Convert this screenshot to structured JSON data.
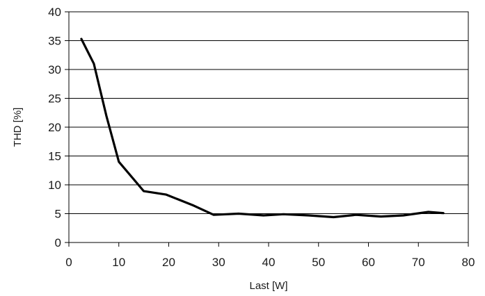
{
  "chart_data": {
    "type": "line",
    "title": "",
    "xlabel": "Last [W]",
    "ylabel": "THD [%]",
    "xlim": [
      0,
      80
    ],
    "ylim": [
      0,
      40
    ],
    "x_ticks": [
      "0",
      "10",
      "20",
      "30",
      "40",
      "50",
      "60",
      "70",
      "80"
    ],
    "y_ticks": [
      "0",
      "5",
      "10",
      "15",
      "20",
      "25",
      "30",
      "35",
      "40"
    ],
    "grid": "horizontal",
    "legend": "none",
    "line_color": "#000000",
    "series": [
      {
        "x": [
          2.5,
          5,
          7.5,
          10,
          15,
          19.5,
          25,
          29,
          34,
          39,
          43,
          48,
          53,
          57.5,
          62.5,
          67,
          72,
          75
        ],
        "y": [
          35.3,
          31,
          22,
          14,
          8.9,
          8.3,
          6.4,
          4.8,
          5.0,
          4.7,
          4.9,
          4.7,
          4.4,
          4.8,
          4.5,
          4.7,
          5.3,
          5.1
        ]
      }
    ]
  }
}
